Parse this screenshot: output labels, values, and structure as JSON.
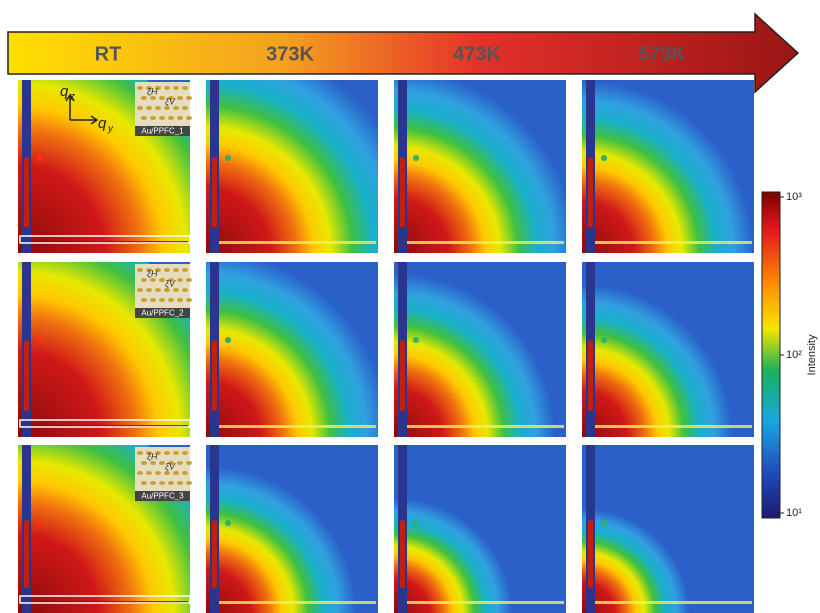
{
  "arrow": {
    "labels": [
      "RT",
      "373K",
      "473K",
      "573K"
    ]
  },
  "axes": {
    "qz": "q",
    "qz_sub": "z",
    "qy": "q",
    "qy_sub": "y"
  },
  "insets": [
    {
      "label": "Au/PPFC_1",
      "xi_h": "ξH",
      "xi_v": "ξV"
    },
    {
      "label": "Au/PPFC_2",
      "xi_h": "ξH",
      "xi_v": "ξV"
    },
    {
      "label": "Au/PPFC_3",
      "xi_h": "ξH",
      "xi_v": "ξV"
    }
  ],
  "colorbar": {
    "label": "Intensity",
    "scale": "log",
    "lim": [
      10,
      1000
    ],
    "ticks": [
      {
        "value": 1000,
        "label": "10³"
      },
      {
        "value": 100,
        "label": "10²"
      },
      {
        "value": 10,
        "label": "10¹"
      }
    ]
  }
}
